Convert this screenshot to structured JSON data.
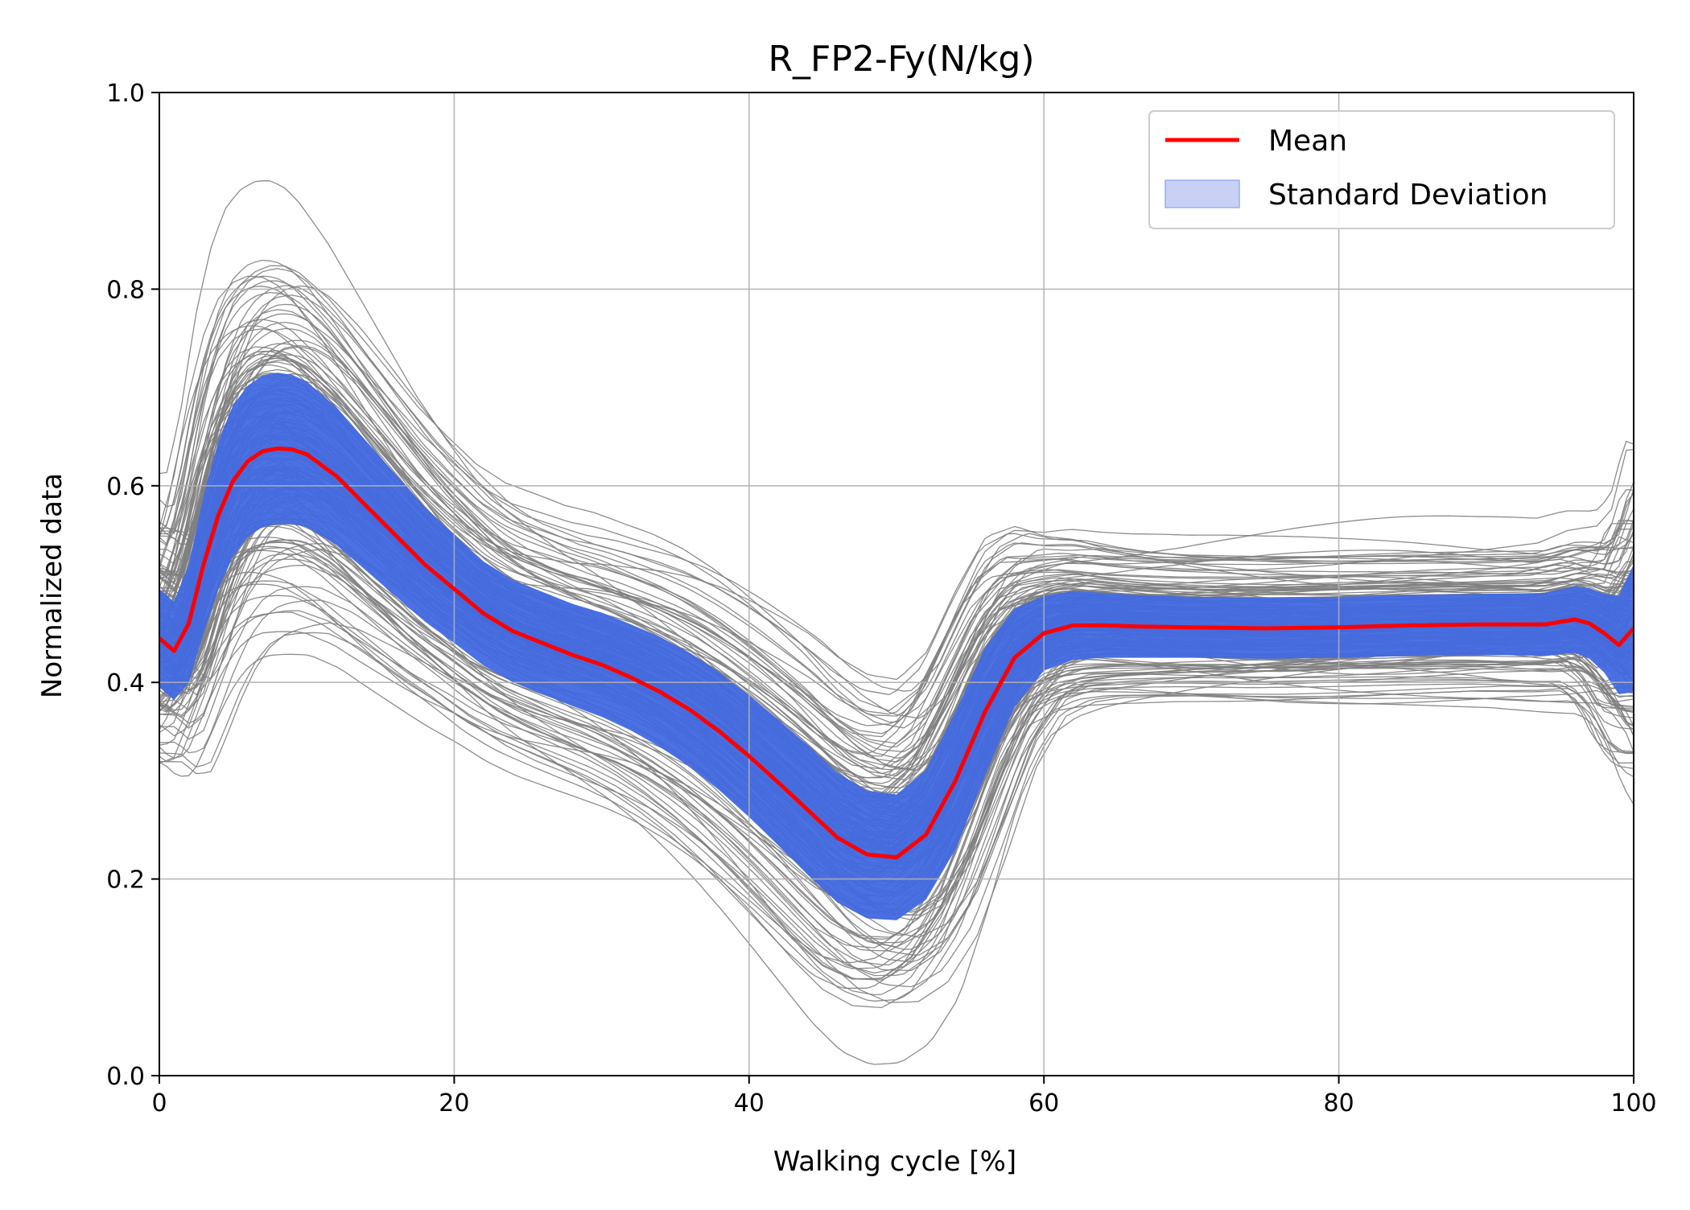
{
  "chart_data": {
    "type": "line",
    "title": "R_FP2-Fy(N/kg)",
    "xlabel": "Walking cycle [%]",
    "ylabel": "Normalized data",
    "xlim": [
      0,
      100
    ],
    "ylim": [
      0.0,
      1.0
    ],
    "xticks": [
      0,
      20,
      40,
      60,
      80,
      100
    ],
    "yticks": [
      0.0,
      0.2,
      0.4,
      0.6,
      0.8,
      1.0
    ],
    "xtick_labels": [
      "0",
      "20",
      "40",
      "60",
      "80",
      "100"
    ],
    "ytick_labels": [
      "0.0",
      "0.2",
      "0.4",
      "0.6",
      "0.8",
      "1.0"
    ],
    "grid": true,
    "legend": {
      "placement": "top-right",
      "entries": [
        "Mean",
        "Standard Deviation"
      ]
    },
    "colors": {
      "mean": "#ff0000",
      "std_band": "#4169e1",
      "std_legend": "#c8d1f5",
      "trials": "#808080"
    },
    "x": [
      0,
      1,
      2,
      3,
      4,
      5,
      6,
      7,
      8,
      9,
      10,
      12,
      14,
      16,
      18,
      20,
      22,
      24,
      26,
      28,
      30,
      32,
      34,
      36,
      38,
      40,
      42,
      44,
      46,
      48,
      50,
      52,
      54,
      56,
      58,
      60,
      62,
      64,
      66,
      70,
      75,
      80,
      85,
      90,
      94,
      96,
      97,
      98,
      99,
      100
    ],
    "series": [
      {
        "name": "Mean",
        "values": [
          0.445,
          0.432,
          0.46,
          0.52,
          0.57,
          0.605,
          0.625,
          0.635,
          0.638,
          0.637,
          0.632,
          0.61,
          0.58,
          0.55,
          0.52,
          0.495,
          0.47,
          0.452,
          0.44,
          0.428,
          0.418,
          0.405,
          0.39,
          0.372,
          0.35,
          0.325,
          0.298,
          0.27,
          0.242,
          0.225,
          0.222,
          0.245,
          0.3,
          0.37,
          0.425,
          0.45,
          0.458,
          0.458,
          0.457,
          0.456,
          0.455,
          0.456,
          0.458,
          0.459,
          0.459,
          0.464,
          0.46,
          0.45,
          0.438,
          0.455
        ]
      },
      {
        "name": "Standard Deviation",
        "values": [
          0.05,
          0.05,
          0.06,
          0.07,
          0.075,
          0.077,
          0.077,
          0.077,
          0.077,
          0.076,
          0.074,
          0.07,
          0.066,
          0.062,
          0.058,
          0.055,
          0.053,
          0.052,
          0.052,
          0.052,
          0.053,
          0.054,
          0.056,
          0.058,
          0.06,
          0.062,
          0.064,
          0.066,
          0.066,
          0.065,
          0.064,
          0.066,
          0.07,
          0.065,
          0.05,
          0.038,
          0.035,
          0.033,
          0.032,
          0.031,
          0.031,
          0.031,
          0.031,
          0.031,
          0.032,
          0.034,
          0.036,
          0.04,
          0.05,
          0.065
        ]
      }
    ]
  }
}
